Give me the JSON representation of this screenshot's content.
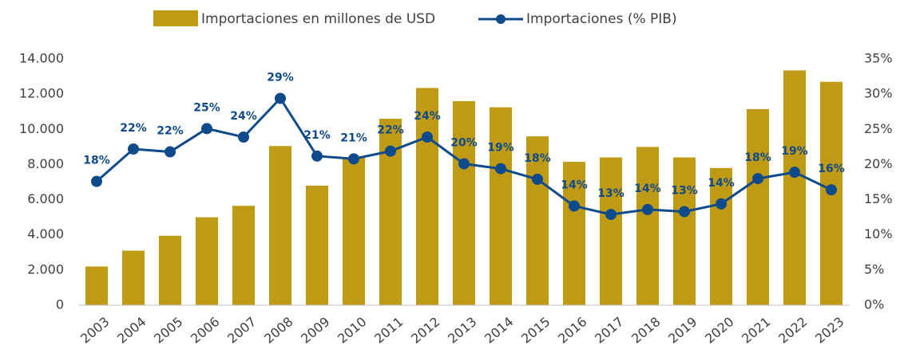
{
  "chart_data": {
    "type": "bar_line",
    "categories": [
      "2003",
      "2004",
      "2005",
      "2006",
      "2007",
      "2008",
      "2009",
      "2010",
      "2011",
      "2012",
      "2013",
      "2014",
      "2015",
      "2016",
      "2017",
      "2018",
      "2019",
      "2020",
      "2021",
      "2022",
      "2023"
    ],
    "series": [
      {
        "name": "Importaciones en millones de USD",
        "color": "#bf9a14",
        "type": "bar",
        "values": [
          2200,
          3100,
          3950,
          5000,
          5650,
          9050,
          6800,
          8400,
          10600,
          12350,
          11600,
          11250,
          9600,
          8150,
          8400,
          9000,
          8400,
          7800,
          11150,
          13350,
          12700
        ]
      },
      {
        "name": "Importaciones (% PIB)",
        "color": "#0f4a8a",
        "type": "line",
        "axis": "y2",
        "values": [
          17.6,
          22.2,
          21.8,
          25.1,
          23.9,
          29.4,
          21.2,
          20.8,
          21.9,
          23.9,
          20.1,
          19.4,
          17.9,
          14.1,
          12.9,
          13.6,
          13.3,
          14.4,
          18.0,
          18.9,
          16.4
        ],
        "value_labels": [
          "18%",
          "22%",
          "22%",
          "25%",
          "24%",
          "29%",
          "21%",
          "21%",
          "22%",
          "24%",
          "20%",
          "19%",
          "18%",
          "14%",
          "13%",
          "14%",
          "13%",
          "14%",
          "18%",
          "19%",
          "16%"
        ]
      }
    ],
    "ylim": [
      0,
      14000
    ],
    "yticks": [
      {
        "value": 0,
        "label": "0"
      },
      {
        "value": 2000,
        "label": "2.000"
      },
      {
        "value": 4000,
        "label": "4.000"
      },
      {
        "value": 6000,
        "label": "6.000"
      },
      {
        "value": 8000,
        "label": "8.000"
      },
      {
        "value": 10000,
        "label": "10.000"
      },
      {
        "value": 12000,
        "label": "12.000"
      },
      {
        "value": 14000,
        "label": "14.000"
      }
    ],
    "y2lim": [
      0,
      35
    ],
    "y2ticks": [
      {
        "value": 0,
        "label": "0%"
      },
      {
        "value": 5,
        "label": "5%"
      },
      {
        "value": 10,
        "label": "10%"
      },
      {
        "value": 15,
        "label": "15%"
      },
      {
        "value": 20,
        "label": "20%"
      },
      {
        "value": 25,
        "label": "25%"
      },
      {
        "value": 30,
        "label": "30%"
      },
      {
        "value": 35,
        "label": "35%"
      }
    ],
    "legend": "top",
    "grid": false
  }
}
